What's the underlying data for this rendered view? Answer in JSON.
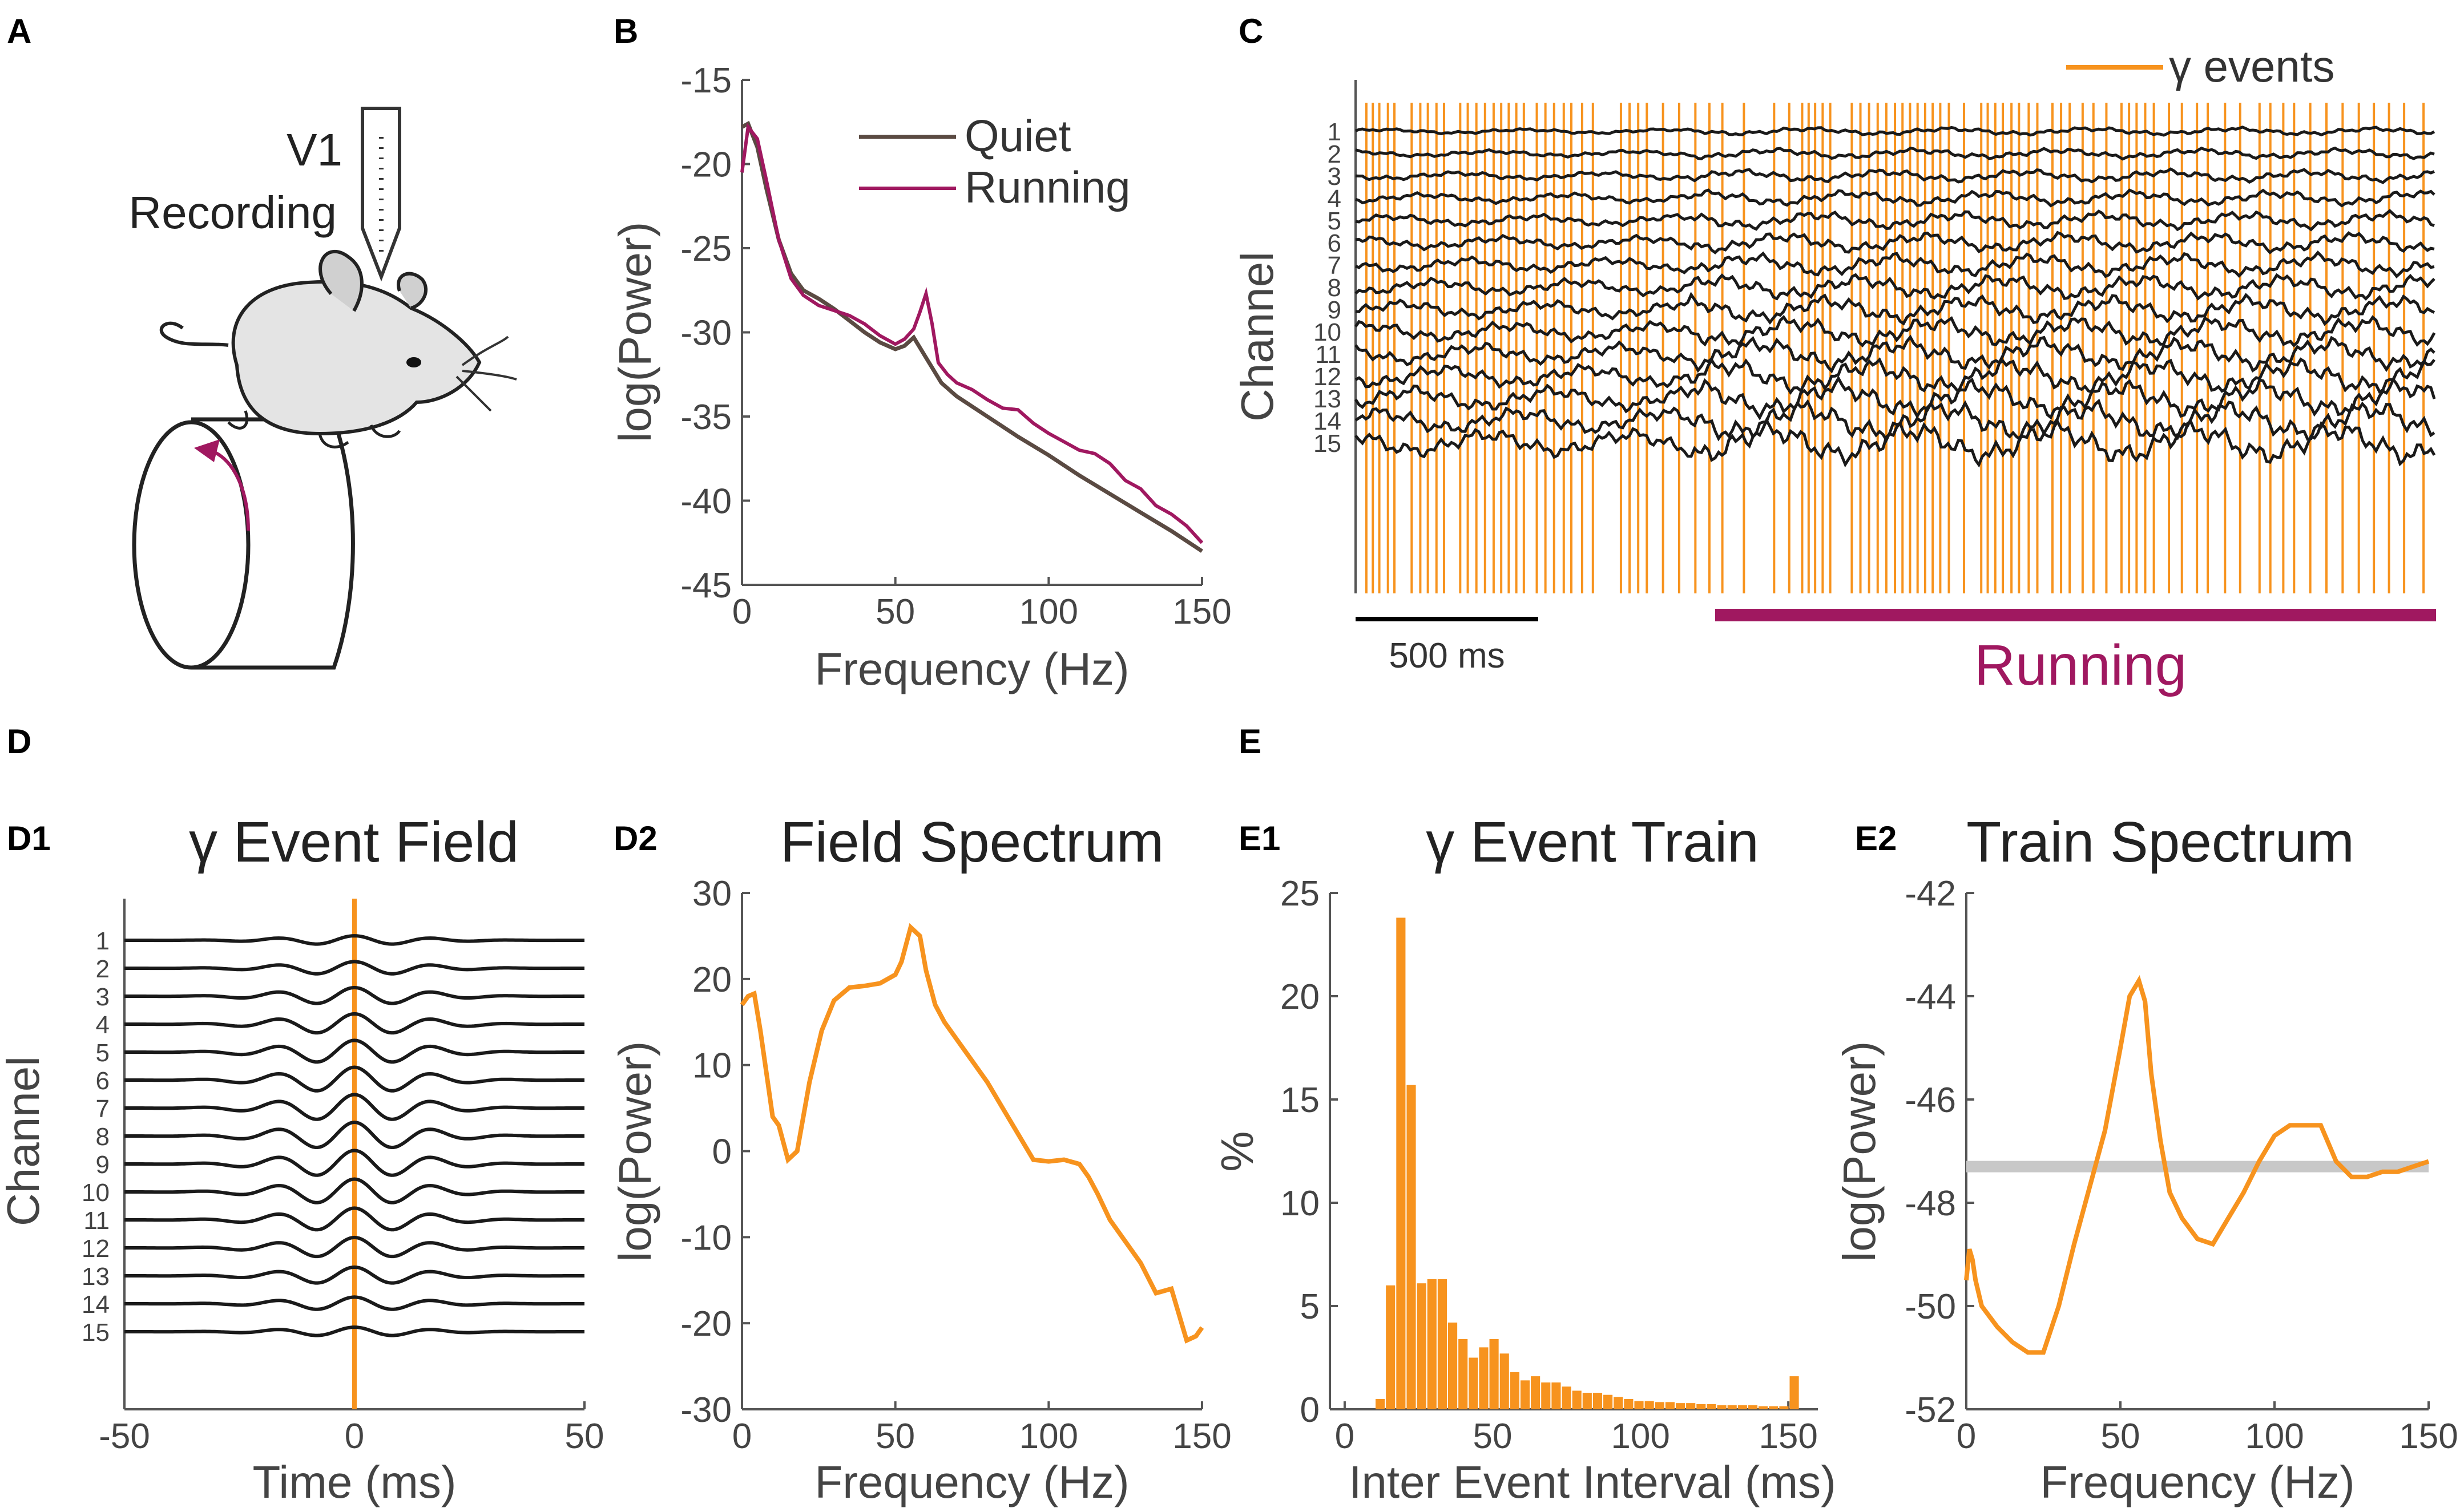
{
  "panel_labels": {
    "A": "A",
    "B": "B",
    "C": "C",
    "D": "D",
    "D1": "D1",
    "D2": "D2",
    "E": "E",
    "E1": "E1",
    "E2": "E2"
  },
  "colors": {
    "gamma": "#f7931e",
    "running": "#a01860",
    "quiet": "#5a4a42",
    "trace": "#1a1a1a",
    "axis": "#555555",
    "baseline": "#c8c8c8"
  },
  "schematic": {
    "region": "V1",
    "recording": "Recording"
  },
  "channels": [
    "1",
    "2",
    "3",
    "4",
    "5",
    "6",
    "7",
    "8",
    "9",
    "10",
    "11",
    "12",
    "13",
    "14",
    "15"
  ],
  "chart_data": [
    {
      "id": "B",
      "type": "line",
      "title": "",
      "xlabel": "Frequency (Hz)",
      "ylabel": "log(Power)",
      "xlim": [
        0,
        150
      ],
      "ylim": [
        -45,
        -15
      ],
      "xticks": [
        "0",
        "50",
        "100",
        "150"
      ],
      "yticks": [
        "-15",
        "-20",
        "-25",
        "-30",
        "-35",
        "-40",
        "-45"
      ],
      "legend": "top-right",
      "series": [
        {
          "name": "Quiet",
          "x": [
            0,
            2,
            5,
            8,
            12,
            16,
            20,
            25,
            30,
            35,
            40,
            45,
            50,
            53,
            56,
            60,
            65,
            70,
            80,
            90,
            100,
            110,
            120,
            130,
            140,
            150
          ],
          "values": [
            -17.8,
            -17.6,
            -19,
            -21.5,
            -24.5,
            -26.5,
            -27.5,
            -28,
            -28.6,
            -29.3,
            -30,
            -30.6,
            -31,
            -30.8,
            -30.3,
            -31.5,
            -33,
            -33.8,
            -35,
            -36.2,
            -37.3,
            -38.5,
            -39.6,
            -40.7,
            -41.8,
            -43
          ]
        },
        {
          "name": "Running",
          "x": [
            0,
            2,
            5,
            8,
            12,
            16,
            20,
            25,
            30,
            35,
            40,
            45,
            50,
            53,
            56,
            58,
            60,
            62,
            64,
            67,
            70,
            75,
            80,
            85,
            90,
            95,
            100,
            105,
            110,
            115,
            120,
            125,
            130,
            135,
            140,
            145,
            150
          ],
          "values": [
            -20.5,
            -17.8,
            -18.5,
            -21,
            -24.5,
            -26.8,
            -27.8,
            -28.4,
            -28.7,
            -29,
            -29.5,
            -30.2,
            -30.7,
            -30.4,
            -29.8,
            -28.8,
            -27.7,
            -29.5,
            -31.8,
            -32.5,
            -33,
            -33.4,
            -34,
            -34.5,
            -34.6,
            -35.4,
            -36,
            -36.5,
            -37,
            -37.2,
            -37.8,
            -38.8,
            -39.3,
            -40.3,
            -40.8,
            -41.5,
            -42.5
          ]
        }
      ]
    },
    {
      "id": "C",
      "type": "line",
      "title": "",
      "xlabel": "",
      "ylabel": "Channel",
      "legend_label": "γ events",
      "scale_bar": "500 ms",
      "running_label": "Running",
      "event_times_fraction": [
        0.01,
        0.016,
        0.022,
        0.03,
        0.036,
        0.052,
        0.06,
        0.067,
        0.075,
        0.082,
        0.097,
        0.104,
        0.112,
        0.12,
        0.128,
        0.135,
        0.142,
        0.149,
        0.156,
        0.168,
        0.176,
        0.184,
        0.193,
        0.2,
        0.21,
        0.22,
        0.246,
        0.254,
        0.262,
        0.27,
        0.285,
        0.3,
        0.315,
        0.328,
        0.34,
        0.36,
        0.388,
        0.402,
        0.414,
        0.42,
        0.426,
        0.433,
        0.44,
        0.46,
        0.468,
        0.476,
        0.484,
        0.492,
        0.5,
        0.507,
        0.514,
        0.521,
        0.528,
        0.535,
        0.542,
        0.55,
        0.564,
        0.58,
        0.586,
        0.593,
        0.6,
        0.608,
        0.615,
        0.624,
        0.632,
        0.646,
        0.654,
        0.662,
        0.674,
        0.684,
        0.696,
        0.71,
        0.717,
        0.724,
        0.732,
        0.74,
        0.754,
        0.766,
        0.78,
        0.79,
        0.806,
        0.82,
        0.838,
        0.848,
        0.86,
        0.87,
        0.885,
        0.9,
        0.915,
        0.93,
        0.944,
        0.958,
        0.972,
        0.99
      ]
    },
    {
      "id": "D1",
      "type": "line",
      "title": "γ Event Field",
      "xlabel": "Time (ms)",
      "ylabel": "Channel",
      "xlim": [
        -50,
        50
      ],
      "xticks": [
        "-50",
        "0",
        "50"
      ],
      "event_time": 0
    },
    {
      "id": "D2",
      "type": "line",
      "title": "Field Spectrum",
      "xlabel": "Frequency (Hz)",
      "ylabel": "log(Power)",
      "xlim": [
        0,
        150
      ],
      "ylim": [
        -30,
        30
      ],
      "xticks": [
        "0",
        "50",
        "100",
        "150"
      ],
      "yticks": [
        "30",
        "20",
        "10",
        "0",
        "-10",
        "-20",
        "-30"
      ],
      "x": [
        0,
        2,
        4,
        6,
        8,
        10,
        12,
        15,
        18,
        22,
        26,
        30,
        35,
        40,
        45,
        50,
        52,
        55,
        58,
        60,
        63,
        66,
        70,
        75,
        80,
        85,
        90,
        95,
        100,
        105,
        110,
        113,
        116,
        120,
        125,
        130,
        135,
        140,
        145,
        148,
        150
      ],
      "values": [
        17,
        18,
        18.3,
        14,
        9,
        4,
        3,
        -1,
        0,
        8,
        14,
        17.5,
        19,
        19.2,
        19.5,
        20.5,
        22,
        26,
        25,
        21,
        17,
        15,
        13,
        10.5,
        8,
        5,
        2,
        -1,
        -1.2,
        -1,
        -1.5,
        -3,
        -5,
        -8,
        -10.5,
        -13,
        -16.5,
        -16,
        -22,
        -21.5,
        -20.5
      ]
    },
    {
      "id": "E1",
      "type": "bar",
      "title": "γ Event Train",
      "xlabel": "Inter Event Interval (ms)",
      "ylabel": "%",
      "xlim": [
        -5,
        160
      ],
      "ylim": [
        0,
        25
      ],
      "xticks": [
        "0",
        "50",
        "100",
        "150"
      ],
      "yticks": [
        "25",
        "20",
        "15",
        "10",
        "5",
        "0"
      ],
      "bin_width_ms": 3.5,
      "x": [
        12,
        15.5,
        19,
        22.5,
        26,
        29.5,
        33,
        36.5,
        40,
        43.5,
        47,
        50.5,
        54,
        57.5,
        61,
        64.5,
        68,
        71.5,
        75,
        78.5,
        82,
        85.5,
        89,
        92.5,
        96,
        99.5,
        103,
        106.5,
        110,
        113.5,
        117,
        120.5,
        124,
        127.5,
        131,
        134.5,
        138,
        141.5,
        145,
        148.5,
        152
      ],
      "values": [
        0.5,
        6,
        23.8,
        15.7,
        6.1,
        6.3,
        6.3,
        4.2,
        3.4,
        2.5,
        3,
        3.4,
        2.7,
        1.8,
        1.4,
        1.6,
        1.3,
        1.3,
        1.1,
        0.9,
        0.8,
        0.8,
        0.7,
        0.6,
        0.5,
        0.4,
        0.4,
        0.35,
        0.35,
        0.3,
        0.3,
        0.25,
        0.25,
        0.2,
        0.2,
        0.2,
        0.2,
        0.15,
        0.15,
        0.15,
        1.6
      ]
    },
    {
      "id": "E2",
      "type": "line",
      "title": "Train Spectrum",
      "xlabel": "Frequency (Hz)",
      "ylabel": "log(Power)",
      "xlim": [
        0,
        150
      ],
      "ylim": [
        -52,
        -42
      ],
      "xticks": [
        "0",
        "50",
        "100",
        "150"
      ],
      "yticks": [
        "-42",
        "-44",
        "-46",
        "-48",
        "-50",
        "-52"
      ],
      "baseline": -47.3,
      "x": [
        0,
        1,
        2,
        3,
        5,
        10,
        15,
        20,
        25,
        30,
        35,
        40,
        45,
        50,
        53,
        56,
        58,
        60,
        63,
        66,
        70,
        75,
        80,
        85,
        90,
        95,
        100,
        105,
        110,
        115,
        120,
        125,
        130,
        135,
        140,
        145,
        150
      ],
      "values": [
        -49.5,
        -48.9,
        -49.1,
        -49.5,
        -50,
        -50.4,
        -50.7,
        -50.9,
        -50.9,
        -50,
        -48.8,
        -47.7,
        -46.6,
        -45,
        -44,
        -43.7,
        -44.1,
        -45.5,
        -46.8,
        -47.8,
        -48.3,
        -48.7,
        -48.8,
        -48.3,
        -47.8,
        -47.2,
        -46.7,
        -46.5,
        -46.5,
        -46.5,
        -47.2,
        -47.5,
        -47.5,
        -47.4,
        -47.4,
        -47.3,
        -47.2
      ]
    }
  ]
}
